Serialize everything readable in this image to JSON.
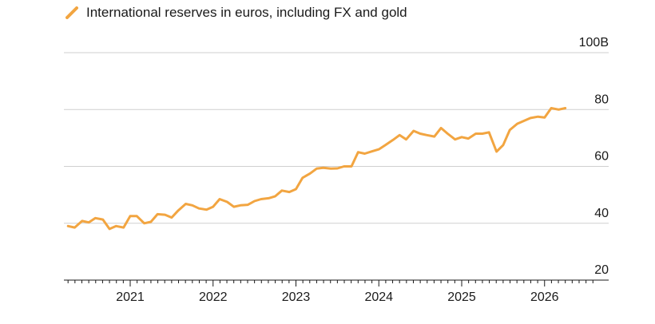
{
  "chart_data": {
    "type": "line",
    "title": "",
    "legend": [
      {
        "label": "International reserves in euros, including FX and gold",
        "color": "#F2A541"
      }
    ],
    "ylim": [
      20,
      100
    ],
    "y_ticks": [
      {
        "value": 100,
        "label": "100B"
      },
      {
        "value": 80,
        "label": "80"
      },
      {
        "value": 60,
        "label": "60"
      },
      {
        "value": 40,
        "label": "40"
      },
      {
        "value": 20,
        "label": "20"
      }
    ],
    "x_range": [
      2020.2,
      2026.6
    ],
    "x_ticks": [
      {
        "value": 2021,
        "label": "2021"
      },
      {
        "value": 2022,
        "label": "2022"
      },
      {
        "value": 2023,
        "label": "2023"
      },
      {
        "value": 2024,
        "label": "2024"
      },
      {
        "value": 2025,
        "label": "2025"
      },
      {
        "value": 2026,
        "label": "2026"
      }
    ],
    "series": [
      {
        "name": "International reserves in euros, including FX and gold",
        "color": "#F2A541",
        "x": [
          2020.25,
          2020.33,
          2020.42,
          2020.5,
          2020.58,
          2020.67,
          2020.75,
          2020.83,
          2020.92,
          2021.0,
          2021.08,
          2021.17,
          2021.25,
          2021.33,
          2021.42,
          2021.5,
          2021.58,
          2021.67,
          2021.75,
          2021.83,
          2021.92,
          2022.0,
          2022.08,
          2022.17,
          2022.25,
          2022.33,
          2022.42,
          2022.5,
          2022.58,
          2022.67,
          2022.75,
          2022.83,
          2022.92,
          2023.0,
          2023.08,
          2023.17,
          2023.25,
          2023.33,
          2023.42,
          2023.5,
          2023.58,
          2023.67,
          2023.75,
          2023.83,
          2023.92,
          2024.0,
          2024.08,
          2024.17,
          2024.25,
          2024.33,
          2024.42,
          2024.5,
          2024.58,
          2024.67,
          2024.75,
          2024.83,
          2024.92,
          2025.0,
          2025.08,
          2025.17,
          2025.25,
          2025.33,
          2025.42,
          2025.5,
          2025.58,
          2025.67,
          2025.75,
          2025.83,
          2025.92,
          2026.0,
          2026.08,
          2026.17,
          2026.25
        ],
        "values": [
          39.0,
          38.5,
          40.8,
          40.3,
          41.8,
          41.3,
          38.0,
          39.0,
          38.5,
          42.5,
          42.5,
          40.0,
          40.5,
          43.2,
          43.0,
          42.0,
          44.5,
          46.8,
          46.3,
          45.2,
          44.8,
          45.8,
          48.5,
          47.5,
          45.8,
          46.3,
          46.5,
          47.8,
          48.5,
          48.8,
          49.5,
          51.5,
          51.0,
          52.0,
          56.0,
          57.5,
          59.2,
          59.5,
          59.2,
          59.3,
          60.0,
          60.0,
          65.0,
          64.5,
          65.3,
          66.0,
          67.5,
          69.3,
          71.0,
          69.5,
          72.5,
          71.5,
          71.0,
          70.5,
          73.5,
          71.5,
          69.5,
          70.3,
          69.8,
          71.5,
          71.5,
          72.0,
          65.2,
          67.5,
          72.8,
          75.0,
          76.0,
          77.0,
          77.5,
          77.2,
          80.5,
          80.0,
          80.5
        ]
      }
    ]
  }
}
